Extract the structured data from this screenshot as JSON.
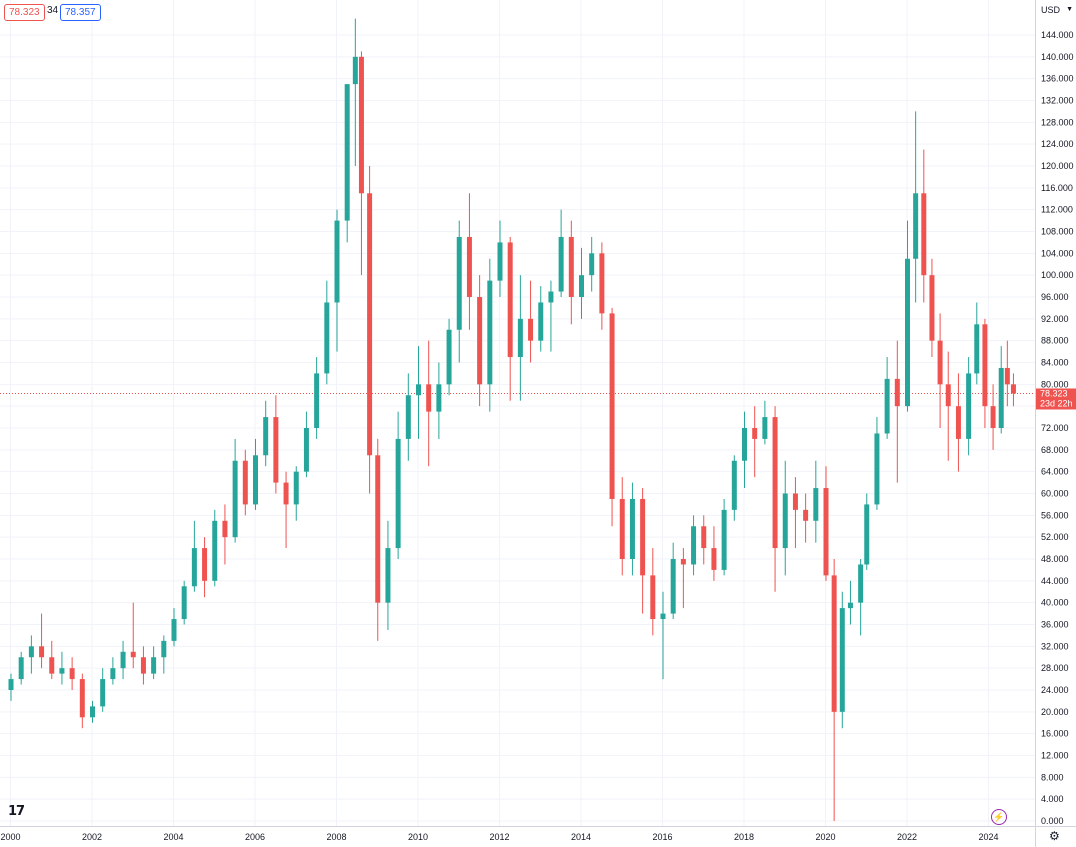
{
  "header": {
    "bid": "78.323",
    "spread": "34",
    "ask": "78.357",
    "currency": "USD"
  },
  "price_label": {
    "value": "78.323",
    "countdown": "23d 22h",
    "color": "#ef5350"
  },
  "colors": {
    "up": "#26a69a",
    "down": "#ef5350",
    "grid": "#f0f3fa"
  },
  "icons": {
    "logo": "tradingview-logo-icon",
    "bolt": "lightning-icon",
    "settings": "gear-icon"
  },
  "chart_data": {
    "type": "candlestick",
    "x_ticks": [
      "2000",
      "2002",
      "2004",
      "2006",
      "2008",
      "2010",
      "2012",
      "2014",
      "2016",
      "2018",
      "2020",
      "2022",
      "2024"
    ],
    "y_ticks": [
      "0.000",
      "4.000",
      "8.000",
      "12.000",
      "16.000",
      "20.000",
      "24.000",
      "28.000",
      "32.000",
      "36.000",
      "40.000",
      "44.000",
      "48.000",
      "52.000",
      "56.000",
      "60.000",
      "64.000",
      "68.000",
      "72.000",
      "76.000",
      "80.000",
      "84.000",
      "88.000",
      "92.000",
      "96.000",
      "100.000",
      "104.000",
      "108.000",
      "112.000",
      "116.000",
      "120.000",
      "124.000",
      "128.000",
      "132.000",
      "136.000",
      "140.000",
      "144.000"
    ],
    "ylim": [
      0,
      146
    ],
    "xlim": [
      2000.0,
      2025.2
    ],
    "last_price": 78.323,
    "frequency": "monthly (approx. quarterly shown)",
    "candles": [
      {
        "t": 2000.0,
        "o": 24,
        "h": 27,
        "l": 22,
        "c": 26
      },
      {
        "t": 2000.25,
        "o": 26,
        "h": 31,
        "l": 25,
        "c": 30
      },
      {
        "t": 2000.5,
        "o": 30,
        "h": 34,
        "l": 27,
        "c": 32
      },
      {
        "t": 2000.75,
        "o": 32,
        "h": 38,
        "l": 28,
        "c": 30
      },
      {
        "t": 2001.0,
        "o": 30,
        "h": 33,
        "l": 26,
        "c": 27
      },
      {
        "t": 2001.25,
        "o": 27,
        "h": 31,
        "l": 25,
        "c": 28
      },
      {
        "t": 2001.5,
        "o": 28,
        "h": 30,
        "l": 24,
        "c": 26
      },
      {
        "t": 2001.75,
        "o": 26,
        "h": 27,
        "l": 17,
        "c": 19
      },
      {
        "t": 2002.0,
        "o": 19,
        "h": 22,
        "l": 18,
        "c": 21
      },
      {
        "t": 2002.25,
        "o": 21,
        "h": 28,
        "l": 20,
        "c": 26
      },
      {
        "t": 2002.5,
        "o": 26,
        "h": 30,
        "l": 25,
        "c": 28
      },
      {
        "t": 2002.75,
        "o": 28,
        "h": 33,
        "l": 26,
        "c": 31
      },
      {
        "t": 2003.0,
        "o": 31,
        "h": 40,
        "l": 28,
        "c": 30
      },
      {
        "t": 2003.25,
        "o": 30,
        "h": 32,
        "l": 25,
        "c": 27
      },
      {
        "t": 2003.5,
        "o": 27,
        "h": 32,
        "l": 26,
        "c": 30
      },
      {
        "t": 2003.75,
        "o": 30,
        "h": 34,
        "l": 27,
        "c": 33
      },
      {
        "t": 2004.0,
        "o": 33,
        "h": 39,
        "l": 32,
        "c": 37
      },
      {
        "t": 2004.25,
        "o": 37,
        "h": 44,
        "l": 36,
        "c": 43
      },
      {
        "t": 2004.5,
        "o": 43,
        "h": 55,
        "l": 42,
        "c": 50
      },
      {
        "t": 2004.75,
        "o": 50,
        "h": 52,
        "l": 41,
        "c": 44
      },
      {
        "t": 2005.0,
        "o": 44,
        "h": 57,
        "l": 43,
        "c": 55
      },
      {
        "t": 2005.25,
        "o": 55,
        "h": 58,
        "l": 47,
        "c": 52
      },
      {
        "t": 2005.5,
        "o": 52,
        "h": 70,
        "l": 51,
        "c": 66
      },
      {
        "t": 2005.75,
        "o": 66,
        "h": 68,
        "l": 56,
        "c": 58
      },
      {
        "t": 2006.0,
        "o": 58,
        "h": 70,
        "l": 57,
        "c": 67
      },
      {
        "t": 2006.25,
        "o": 67,
        "h": 77,
        "l": 65,
        "c": 74
      },
      {
        "t": 2006.5,
        "o": 74,
        "h": 78,
        "l": 60,
        "c": 62
      },
      {
        "t": 2006.75,
        "o": 62,
        "h": 64,
        "l": 50,
        "c": 58
      },
      {
        "t": 2007.0,
        "o": 58,
        "h": 65,
        "l": 55,
        "c": 64
      },
      {
        "t": 2007.25,
        "o": 64,
        "h": 75,
        "l": 63,
        "c": 72
      },
      {
        "t": 2007.5,
        "o": 72,
        "h": 85,
        "l": 70,
        "c": 82
      },
      {
        "t": 2007.75,
        "o": 82,
        "h": 99,
        "l": 80,
        "c": 95
      },
      {
        "t": 2008.0,
        "o": 95,
        "h": 112,
        "l": 86,
        "c": 110
      },
      {
        "t": 2008.25,
        "o": 110,
        "h": 135,
        "l": 106,
        "c": 135
      },
      {
        "t": 2008.45,
        "o": 135,
        "h": 147,
        "l": 120,
        "c": 140
      },
      {
        "t": 2008.6,
        "o": 140,
        "h": 141,
        "l": 100,
        "c": 115
      },
      {
        "t": 2008.8,
        "o": 115,
        "h": 120,
        "l": 60,
        "c": 67
      },
      {
        "t": 2009.0,
        "o": 67,
        "h": 70,
        "l": 33,
        "c": 40
      },
      {
        "t": 2009.25,
        "o": 40,
        "h": 55,
        "l": 35,
        "c": 50
      },
      {
        "t": 2009.5,
        "o": 50,
        "h": 75,
        "l": 48,
        "c": 70
      },
      {
        "t": 2009.75,
        "o": 70,
        "h": 82,
        "l": 66,
        "c": 78
      },
      {
        "t": 2010.0,
        "o": 78,
        "h": 87,
        "l": 70,
        "c": 80
      },
      {
        "t": 2010.25,
        "o": 80,
        "h": 88,
        "l": 65,
        "c": 75
      },
      {
        "t": 2010.5,
        "o": 75,
        "h": 84,
        "l": 70,
        "c": 80
      },
      {
        "t": 2010.75,
        "o": 80,
        "h": 92,
        "l": 78,
        "c": 90
      },
      {
        "t": 2011.0,
        "o": 90,
        "h": 110,
        "l": 84,
        "c": 107
      },
      {
        "t": 2011.25,
        "o": 107,
        "h": 115,
        "l": 90,
        "c": 96
      },
      {
        "t": 2011.5,
        "o": 96,
        "h": 100,
        "l": 76,
        "c": 80
      },
      {
        "t": 2011.75,
        "o": 80,
        "h": 103,
        "l": 75,
        "c": 99
      },
      {
        "t": 2012.0,
        "o": 99,
        "h": 110,
        "l": 96,
        "c": 106
      },
      {
        "t": 2012.25,
        "o": 106,
        "h": 107,
        "l": 77,
        "c": 85
      },
      {
        "t": 2012.5,
        "o": 85,
        "h": 100,
        "l": 77,
        "c": 92
      },
      {
        "t": 2012.75,
        "o": 92,
        "h": 99,
        "l": 84,
        "c": 88
      },
      {
        "t": 2013.0,
        "o": 88,
        "h": 98,
        "l": 86,
        "c": 95
      },
      {
        "t": 2013.25,
        "o": 95,
        "h": 99,
        "l": 86,
        "c": 97
      },
      {
        "t": 2013.5,
        "o": 97,
        "h": 112,
        "l": 96,
        "c": 107
      },
      {
        "t": 2013.75,
        "o": 107,
        "h": 110,
        "l": 91,
        "c": 96
      },
      {
        "t": 2014.0,
        "o": 96,
        "h": 105,
        "l": 92,
        "c": 100
      },
      {
        "t": 2014.25,
        "o": 100,
        "h": 107,
        "l": 97,
        "c": 104
      },
      {
        "t": 2014.5,
        "o": 104,
        "h": 106,
        "l": 90,
        "c": 93
      },
      {
        "t": 2014.75,
        "o": 93,
        "h": 94,
        "l": 54,
        "c": 59
      },
      {
        "t": 2015.0,
        "o": 59,
        "h": 63,
        "l": 45,
        "c": 48
      },
      {
        "t": 2015.25,
        "o": 48,
        "h": 62,
        "l": 45,
        "c": 59
      },
      {
        "t": 2015.5,
        "o": 59,
        "h": 61,
        "l": 38,
        "c": 45
      },
      {
        "t": 2015.75,
        "o": 45,
        "h": 50,
        "l": 34,
        "c": 37
      },
      {
        "t": 2016.0,
        "o": 37,
        "h": 42,
        "l": 26,
        "c": 38
      },
      {
        "t": 2016.25,
        "o": 38,
        "h": 51,
        "l": 37,
        "c": 48
      },
      {
        "t": 2016.5,
        "o": 48,
        "h": 50,
        "l": 39,
        "c": 47
      },
      {
        "t": 2016.75,
        "o": 47,
        "h": 56,
        "l": 45,
        "c": 54
      },
      {
        "t": 2017.0,
        "o": 54,
        "h": 56,
        "l": 47,
        "c": 50
      },
      {
        "t": 2017.25,
        "o": 50,
        "h": 54,
        "l": 44,
        "c": 46
      },
      {
        "t": 2017.5,
        "o": 46,
        "h": 59,
        "l": 45,
        "c": 57
      },
      {
        "t": 2017.75,
        "o": 57,
        "h": 67,
        "l": 55,
        "c": 66
      },
      {
        "t": 2018.0,
        "o": 66,
        "h": 75,
        "l": 61,
        "c": 72
      },
      {
        "t": 2018.25,
        "o": 72,
        "h": 76,
        "l": 63,
        "c": 70
      },
      {
        "t": 2018.5,
        "o": 70,
        "h": 77,
        "l": 69,
        "c": 74
      },
      {
        "t": 2018.75,
        "o": 74,
        "h": 76,
        "l": 42,
        "c": 50
      },
      {
        "t": 2019.0,
        "o": 50,
        "h": 66,
        "l": 45,
        "c": 60
      },
      {
        "t": 2019.25,
        "o": 60,
        "h": 63,
        "l": 50,
        "c": 57
      },
      {
        "t": 2019.5,
        "o": 57,
        "h": 60,
        "l": 51,
        "c": 55
      },
      {
        "t": 2019.75,
        "o": 55,
        "h": 66,
        "l": 51,
        "c": 61
      },
      {
        "t": 2020.0,
        "o": 61,
        "h": 65,
        "l": 44,
        "c": 45
      },
      {
        "t": 2020.2,
        "o": 45,
        "h": 48,
        "l": 0,
        "c": 20
      },
      {
        "t": 2020.4,
        "o": 20,
        "h": 42,
        "l": 17,
        "c": 39
      },
      {
        "t": 2020.6,
        "o": 39,
        "h": 44,
        "l": 36,
        "c": 40
      },
      {
        "t": 2020.85,
        "o": 40,
        "h": 48,
        "l": 34,
        "c": 47
      },
      {
        "t": 2021.0,
        "o": 47,
        "h": 60,
        "l": 46,
        "c": 58
      },
      {
        "t": 2021.25,
        "o": 58,
        "h": 74,
        "l": 57,
        "c": 71
      },
      {
        "t": 2021.5,
        "o": 71,
        "h": 85,
        "l": 70,
        "c": 81
      },
      {
        "t": 2021.75,
        "o": 81,
        "h": 88,
        "l": 62,
        "c": 76
      },
      {
        "t": 2022.0,
        "o": 76,
        "h": 110,
        "l": 75,
        "c": 103
      },
      {
        "t": 2022.2,
        "o": 103,
        "h": 130,
        "l": 95,
        "c": 115
      },
      {
        "t": 2022.4,
        "o": 115,
        "h": 123,
        "l": 95,
        "c": 100
      },
      {
        "t": 2022.6,
        "o": 100,
        "h": 103,
        "l": 85,
        "c": 88
      },
      {
        "t": 2022.8,
        "o": 88,
        "h": 93,
        "l": 72,
        "c": 80
      },
      {
        "t": 2023.0,
        "o": 80,
        "h": 86,
        "l": 66,
        "c": 76
      },
      {
        "t": 2023.25,
        "o": 76,
        "h": 82,
        "l": 64,
        "c": 70
      },
      {
        "t": 2023.5,
        "o": 70,
        "h": 85,
        "l": 67,
        "c": 82
      },
      {
        "t": 2023.7,
        "o": 82,
        "h": 95,
        "l": 80,
        "c": 91
      },
      {
        "t": 2023.9,
        "o": 91,
        "h": 92,
        "l": 72,
        "c": 76
      },
      {
        "t": 2024.1,
        "o": 76,
        "h": 80,
        "l": 68,
        "c": 72
      },
      {
        "t": 2024.3,
        "o": 72,
        "h": 87,
        "l": 71,
        "c": 83
      },
      {
        "t": 2024.45,
        "o": 83,
        "h": 88,
        "l": 76,
        "c": 80
      },
      {
        "t": 2024.6,
        "o": 80,
        "h": 82,
        "l": 76,
        "c": 78.323
      }
    ]
  }
}
